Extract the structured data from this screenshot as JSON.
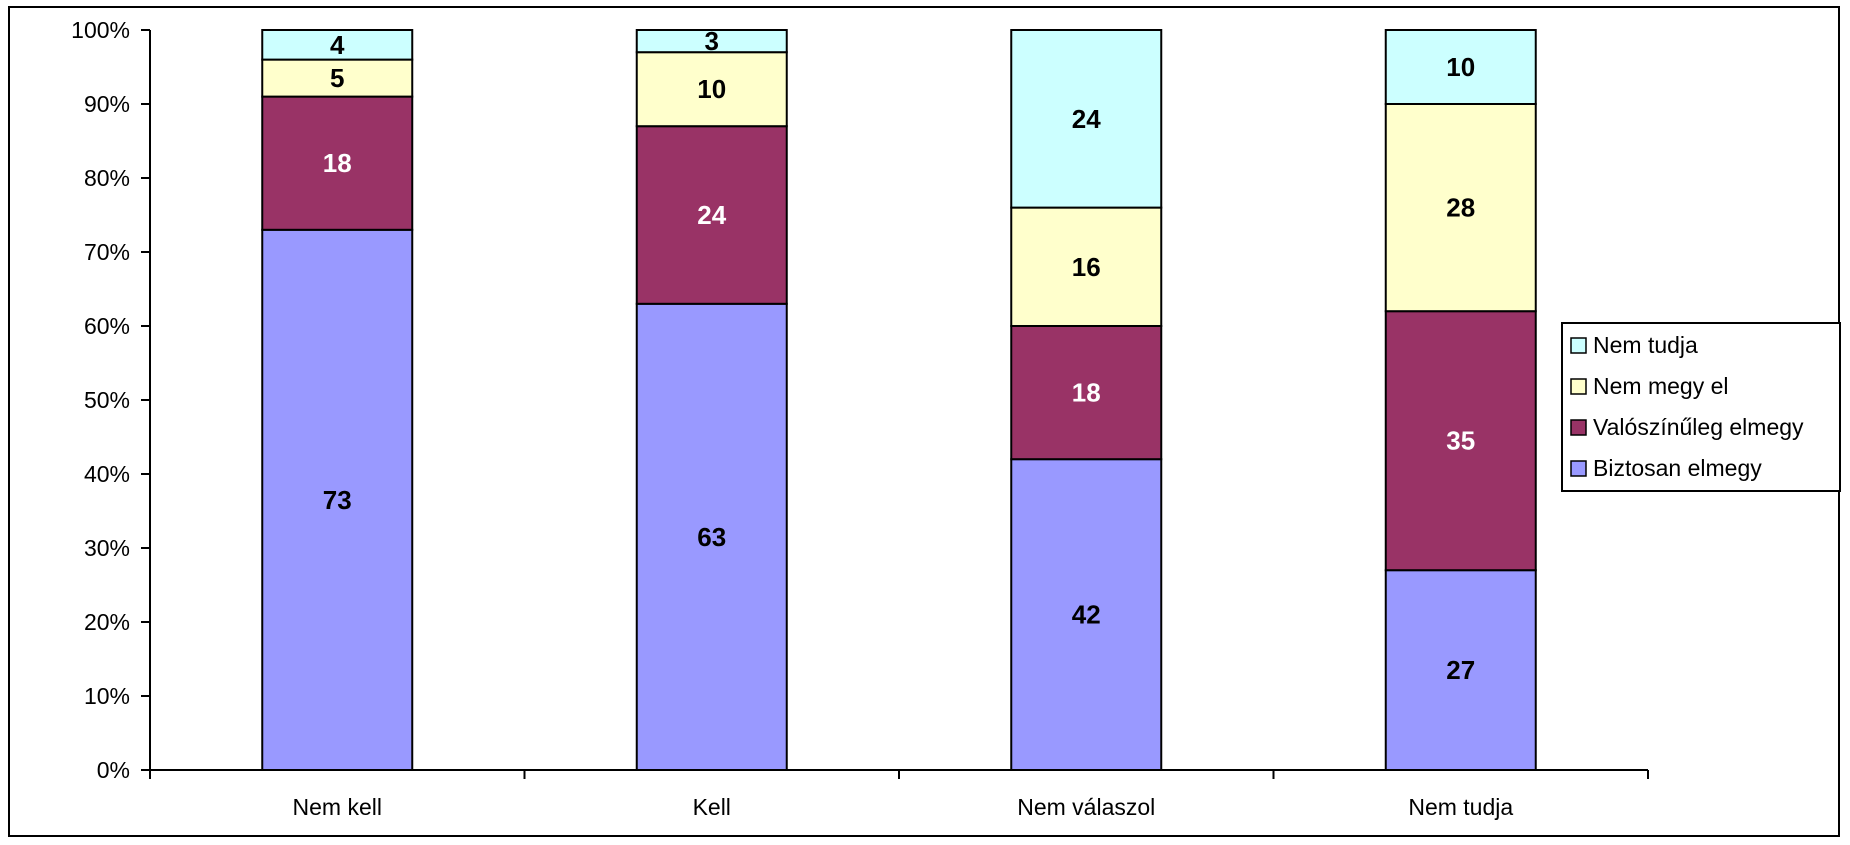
{
  "chart_data": {
    "type": "bar",
    "stacked": true,
    "percent": true,
    "title": "",
    "xlabel": "",
    "ylabel": "",
    "ylim": [
      0,
      100
    ],
    "y_ticks": [
      "0%",
      "10%",
      "20%",
      "30%",
      "40%",
      "50%",
      "60%",
      "70%",
      "80%",
      "90%",
      "100%"
    ],
    "categories": [
      "Nem kell",
      "Kell",
      "Nem válaszol",
      "Nem tudja"
    ],
    "series": [
      {
        "name": "Biztosan elmegy",
        "values": [
          73,
          63,
          42,
          27
        ],
        "color": "#9999ff",
        "label_color": "#000000"
      },
      {
        "name": "Valószínűleg elmegy",
        "values": [
          18,
          24,
          18,
          35
        ],
        "color": "#993366",
        "label_color": "#ffffff"
      },
      {
        "name": "Nem megy el",
        "values": [
          5,
          10,
          16,
          28
        ],
        "color": "#ffffcc",
        "label_color": "#000000"
      },
      {
        "name": "Nem tudja",
        "values": [
          4,
          3,
          24,
          10
        ],
        "color": "#ccffff",
        "label_color": "#000000"
      }
    ],
    "legend": {
      "position": "right",
      "order": [
        "Nem tudja",
        "Nem megy el",
        "Valószínűleg elmegy",
        "Biztosan elmegy"
      ]
    },
    "grid": false
  }
}
